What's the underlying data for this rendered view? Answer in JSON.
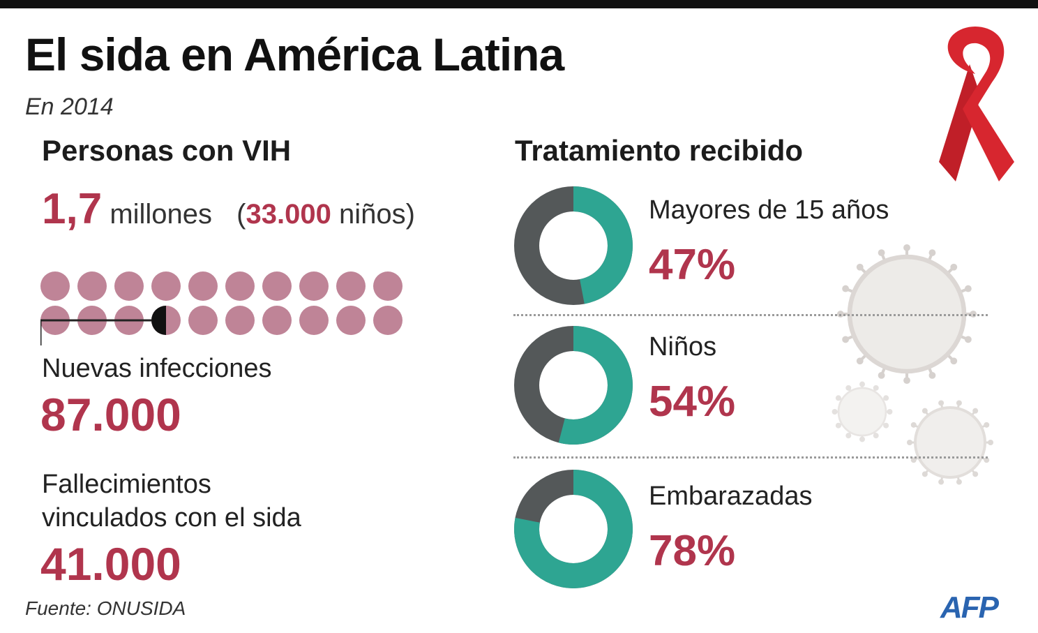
{
  "header": {
    "title": "El sida en América Latina",
    "subtitle": "En 2014"
  },
  "colors": {
    "accent_red": "#b0354d",
    "dot_color": "#bf8497",
    "donut_teal": "#2ea592",
    "donut_gray": "#545859",
    "ribbon_red": "#d7262f",
    "afp_blue": "#2a64b0"
  },
  "icons": [
    "red-ribbon-icon",
    "virus-icon",
    "afp-logo"
  ],
  "personas": {
    "heading": "Personas con VIH",
    "total_value": "1,7",
    "total_unit": "millones",
    "paren_open": "(",
    "children_value": "33.000",
    "children_unit": "niños)",
    "dot_total": 20,
    "dot_highlight_index": 13
  },
  "nuevas": {
    "label": "Nuevas infecciones",
    "value": "87.000"
  },
  "fallecimientos": {
    "label_line1": "Fallecimientos",
    "label_line2": "vinculados con el sida",
    "value": "41.000"
  },
  "tratamiento": {
    "heading": "Tratamiento recibido"
  },
  "chart_data": {
    "type": "pie",
    "title": "Tratamiento recibido",
    "categories": [
      "Mayores de 15 años",
      "Niños",
      "Embarazadas"
    ],
    "values": [
      47,
      54,
      78
    ],
    "unit": "%",
    "value_labels": [
      "47%",
      "54%",
      "78%"
    ]
  },
  "footer": {
    "source": "Fuente: ONUSIDA",
    "logo": "AFP"
  }
}
